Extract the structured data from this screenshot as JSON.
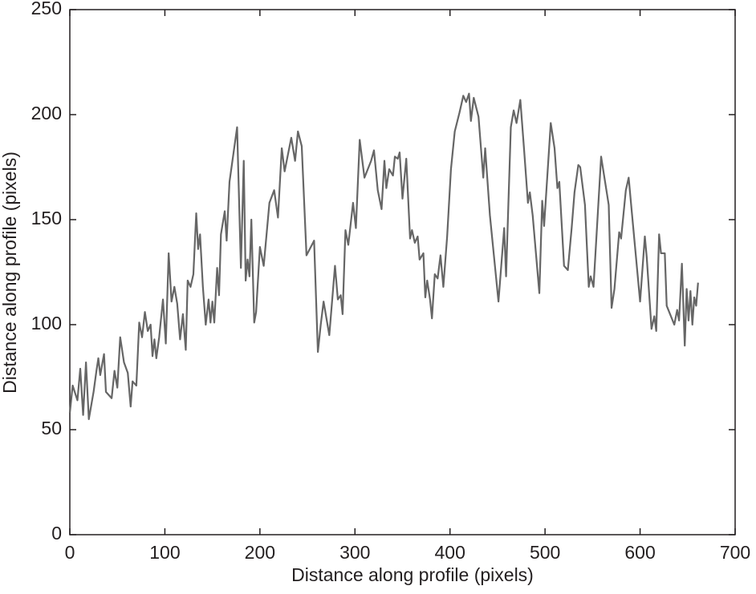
{
  "chart_data": {
    "type": "line",
    "xlabel": "Distance along profile (pixels)",
    "ylabel": "Distance along profile (pixels)",
    "color": "#666666",
    "xlim": [
      0,
      700
    ],
    "xticks": [
      0,
      100,
      200,
      300,
      400,
      500,
      600,
      700
    ],
    "ylim": [
      0,
      250
    ],
    "yticks": [
      0,
      50,
      100,
      150,
      200,
      250
    ],
    "x": [
      0,
      3,
      8,
      11,
      14,
      17,
      20,
      25,
      28,
      30,
      32,
      36,
      38,
      44,
      47,
      50,
      53,
      57,
      61,
      64,
      66,
      70,
      73,
      76,
      79,
      82,
      85,
      87,
      89,
      91,
      94,
      98,
      101,
      104,
      107,
      110,
      113,
      116,
      119,
      122,
      124,
      127,
      130,
      133,
      135,
      137,
      140,
      143,
      146,
      148,
      150,
      152,
      155,
      157,
      159,
      163,
      165,
      168,
      176,
      180,
      183,
      185,
      187,
      189,
      191,
      194,
      196,
      200,
      204,
      210,
      215,
      219,
      223,
      226,
      233,
      237,
      240,
      244,
      249,
      257,
      261,
      264,
      267,
      270,
      273,
      279,
      282,
      285,
      287,
      290,
      293,
      298,
      301,
      305,
      310,
      317,
      320,
      324,
      328,
      331,
      333,
      336,
      340,
      342,
      345,
      347,
      350,
      354,
      358,
      360,
      363,
      366,
      368,
      372,
      374,
      376,
      379,
      381,
      384,
      387,
      390,
      393,
      397,
      401,
      405,
      410,
      414,
      417,
      420,
      422,
      425,
      430,
      435,
      437,
      442,
      451,
      457,
      459,
      464,
      467,
      470,
      474,
      478,
      482,
      484,
      487,
      494,
      497,
      499,
      506,
      510,
      513,
      515,
      520,
      524,
      528,
      531,
      535,
      537,
      542,
      546,
      548,
      551,
      559,
      567,
      570,
      573,
      578,
      580,
      585,
      588,
      591,
      600,
      605,
      607,
      612,
      615,
      617,
      620,
      622,
      626,
      628,
      636,
      639,
      641,
      644,
      647,
      649,
      651,
      653,
      655,
      657,
      659,
      661
    ],
    "values": [
      58,
      71,
      64,
      79,
      57,
      82,
      55,
      68,
      78,
      84,
      76,
      86,
      68,
      65,
      78,
      70,
      94,
      82,
      77,
      61,
      73,
      71,
      101,
      94,
      106,
      97,
      100,
      85,
      93,
      84,
      94,
      112,
      91,
      134,
      111,
      118,
      110,
      93,
      105,
      88,
      121,
      118,
      124,
      153,
      136,
      143,
      118,
      100,
      112,
      101,
      111,
      101,
      127,
      114,
      143,
      154,
      140,
      168,
      194,
      127,
      178,
      121,
      131,
      123,
      150,
      101,
      106,
      137,
      128,
      158,
      164,
      151,
      184,
      173,
      189,
      178,
      192,
      185,
      133,
      140,
      87,
      100,
      111,
      103,
      95,
      128,
      112,
      114,
      105,
      145,
      138,
      158,
      146,
      188,
      170,
      178,
      183,
      164,
      155,
      178,
      165,
      174,
      171,
      180,
      179,
      182,
      160,
      179,
      141,
      145,
      139,
      142,
      131,
      134,
      113,
      121,
      112,
      103,
      124,
      122,
      133,
      118,
      142,
      174,
      192,
      201,
      209,
      206,
      210,
      197,
      208,
      199,
      170,
      184,
      152,
      111,
      146,
      123,
      194,
      202,
      196,
      207,
      183,
      158,
      163,
      152,
      115,
      159,
      147,
      196,
      184,
      165,
      168,
      128,
      126,
      146,
      163,
      176,
      175,
      157,
      118,
      123,
      118,
      180,
      157,
      108,
      117,
      144,
      141,
      164,
      170,
      155,
      111,
      142,
      132,
      98,
      104,
      97,
      143,
      134,
      134,
      109,
      100,
      107,
      102,
      129,
      90,
      117,
      102,
      116,
      100,
      113,
      109,
      120
    ]
  }
}
